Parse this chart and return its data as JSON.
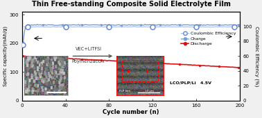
{
  "title": "Thin Free-standing Composite Solid Electrolyte Film",
  "xlabel": "Cycle number (n)",
  "ylabel_left": "Specific capacity(mAh/g)",
  "ylabel_right": "Coulombic Efficiency (%)",
  "xlim": [
    0,
    200
  ],
  "ylim_left": [
    0,
    310
  ],
  "ylim_right": [
    0,
    120
  ],
  "yticks_left": [
    0,
    100,
    200,
    300
  ],
  "yticks_right": [
    0,
    20,
    40,
    60,
    80,
    100
  ],
  "xticks": [
    0,
    40,
    80,
    120,
    160,
    200
  ],
  "charge_color": "#7a9fd4",
  "discharge_color": "#dd1111",
  "ce_color": "#aabfe8",
  "ce_marker_edge": "#6688cc",
  "bg_color": "#f0f0f0",
  "plot_bg": "#ffffff",
  "annotation_lcoli": "LCO/PLP/Li   4.5V",
  "annotation_vec": "VEC+LiTFSI",
  "annotation_poly": "Poymerization",
  "legend_entries": [
    "Coulombic Efficiency",
    "Charge",
    "Discharge"
  ]
}
